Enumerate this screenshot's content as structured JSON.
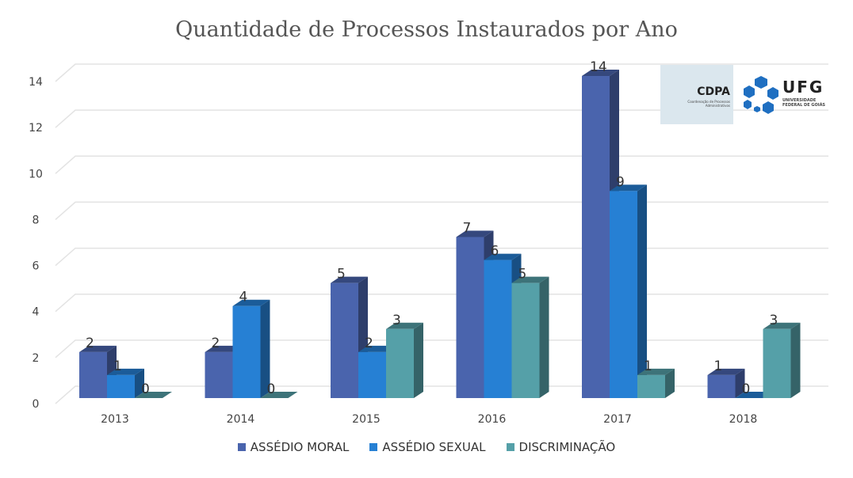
{
  "chart_data": {
    "type": "bar",
    "title": "Quantidade de Processos Instaurados por Ano",
    "categories": [
      "2013",
      "2014",
      "2015",
      "2016",
      "2017",
      "2018"
    ],
    "series": [
      {
        "name": "ASSÉDIO MORAL",
        "color": "#4a64ad",
        "values": [
          2,
          2,
          5,
          7,
          14,
          1
        ]
      },
      {
        "name": "ASSÉDIO SEXUAL",
        "color": "#2680d4",
        "values": [
          1,
          4,
          2,
          6,
          9,
          0
        ]
      },
      {
        "name": "DISCRIMINAÇÃO",
        "color": "#55a0a8",
        "values": [
          0,
          0,
          3,
          5,
          1,
          3
        ]
      }
    ],
    "yticks": [
      0,
      2,
      4,
      6,
      8,
      10,
      12,
      14
    ],
    "ylim": [
      0,
      14
    ],
    "grid": true,
    "legend": "bottom",
    "xlabel": "",
    "ylabel": ""
  },
  "logos": {
    "cdpa": "CDPA",
    "cdpa_sub": "Coordenação de Processos Administrativos",
    "ufg": "UFG",
    "ufg_sub": "UNIVERSIDADE FEDERAL DE GOIÁS"
  }
}
